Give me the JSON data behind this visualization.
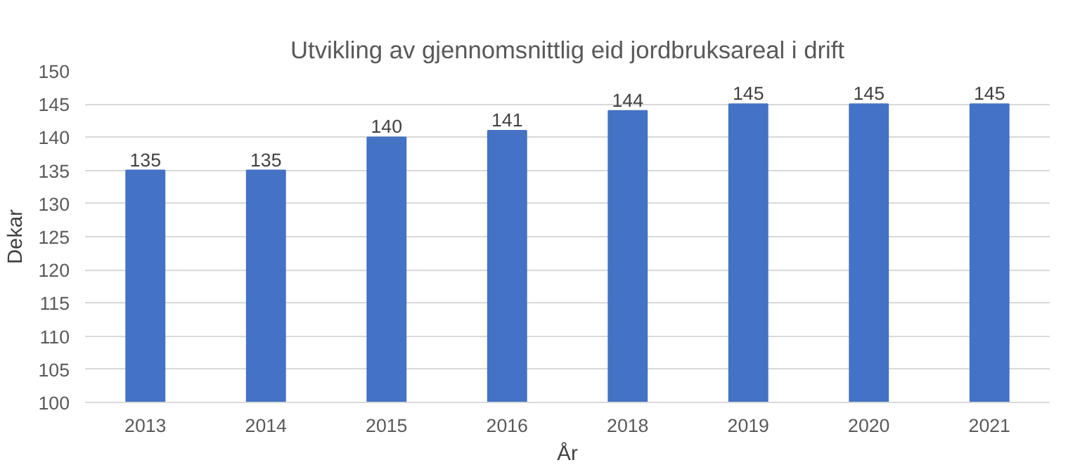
{
  "chart_data": {
    "type": "bar",
    "title": "Utvikling av gjennomsnittlig eid jordbruksareal i drift",
    "xlabel": "År",
    "ylabel": "Dekar",
    "categories": [
      "2013",
      "2014",
      "2015",
      "2016",
      "2018",
      "2019",
      "2020",
      "2021"
    ],
    "values": [
      135,
      135,
      140,
      141,
      144,
      145,
      145,
      145
    ],
    "color": "#4472c4",
    "ylim": [
      100,
      150
    ],
    "yticks": [
      100,
      105,
      110,
      115,
      120,
      125,
      130,
      135,
      140,
      145,
      150
    ],
    "grid": "y",
    "data_labels": true
  }
}
